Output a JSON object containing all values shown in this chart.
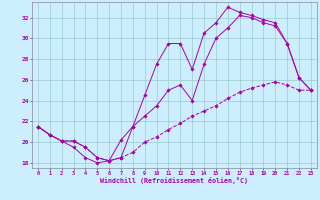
{
  "xlabel": "Windchill (Refroidissement éolien,°C)",
  "background_color": "#cceeff",
  "line_color": "#aa00aa",
  "grid_color": "#99cccc",
  "xlim": [
    -0.5,
    23.5
  ],
  "ylim": [
    17.5,
    33.5
  ],
  "xticks": [
    0,
    1,
    2,
    3,
    4,
    5,
    6,
    7,
    8,
    9,
    10,
    11,
    12,
    13,
    14,
    15,
    16,
    17,
    18,
    19,
    20,
    21,
    22,
    23
  ],
  "yticks": [
    18,
    20,
    22,
    24,
    26,
    28,
    30,
    32
  ],
  "line1_x": [
    0,
    1,
    2,
    3,
    4,
    5,
    6,
    7,
    8,
    9,
    10,
    11,
    12,
    13,
    14,
    15,
    16,
    17,
    18,
    19,
    20,
    21,
    22,
    23
  ],
  "line1_y": [
    21.5,
    20.7,
    20.1,
    19.5,
    18.5,
    18.0,
    18.2,
    18.5,
    21.5,
    24.5,
    27.5,
    29.5,
    29.5,
    27.0,
    30.5,
    31.5,
    33.0,
    32.5,
    32.2,
    31.8,
    31.5,
    29.5,
    26.2,
    25.0
  ],
  "line2_x": [
    0,
    1,
    2,
    3,
    4,
    5,
    6,
    7,
    8,
    9,
    10,
    11,
    12,
    13,
    14,
    15,
    16,
    17,
    18,
    19,
    20,
    21,
    22,
    23
  ],
  "line2_y": [
    21.5,
    20.7,
    20.1,
    20.1,
    19.5,
    18.5,
    18.2,
    20.2,
    21.5,
    22.5,
    23.5,
    25.0,
    25.5,
    24.0,
    27.5,
    30.0,
    31.0,
    32.2,
    32.0,
    31.5,
    31.2,
    29.5,
    26.2,
    25.0
  ],
  "line3_x": [
    0,
    1,
    2,
    3,
    4,
    5,
    6,
    7,
    8,
    9,
    10,
    11,
    12,
    13,
    14,
    15,
    16,
    17,
    18,
    19,
    20,
    21,
    22,
    23
  ],
  "line3_y": [
    21.5,
    20.7,
    20.1,
    20.1,
    19.5,
    18.5,
    18.2,
    18.5,
    19.0,
    20.0,
    20.5,
    21.2,
    21.8,
    22.5,
    23.0,
    23.5,
    24.2,
    24.8,
    25.2,
    25.5,
    25.8,
    25.5,
    25.0,
    25.0
  ]
}
